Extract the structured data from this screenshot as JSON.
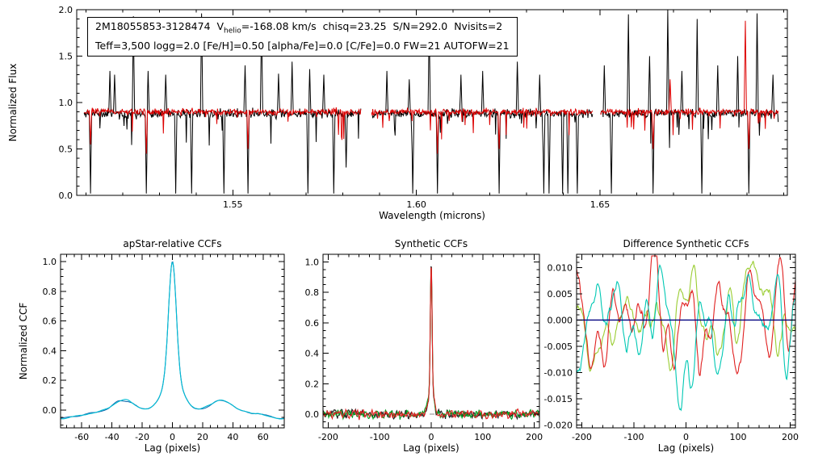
{
  "page": {
    "background": "#ffffff"
  },
  "annotation": {
    "line1_pre": "2M18055853-3128474  V",
    "line1_sub": "helio",
    "line1_post": "=-168.08 km/s  chisq=23.25  S/N=292.0  Nvisits=2",
    "line2": "Teff=3,500 logg=2.0 [Fe/H]=0.50 [alpha/Fe]=0.0 [C/Fe]=0.0 FW=21 AUTOFW=21"
  },
  "chart_data": [
    {
      "id": "spectrum",
      "type": "line",
      "title": "",
      "xlabel": "Wavelength (microns)",
      "ylabel": "Normalized Flux",
      "xlim": [
        1.5075,
        1.701
      ],
      "ylim": [
        0.0,
        2.0
      ],
      "xticks": [
        1.55,
        1.6,
        1.65
      ],
      "xtick_labels": [
        "1.55",
        "1.60",
        "1.65"
      ],
      "xminor": 0.01,
      "yticks": [
        0.0,
        0.5,
        1.0,
        1.5,
        2.0
      ],
      "ytick_labels": [
        "0.0",
        "0.5",
        "1.0",
        "1.5",
        "2.0"
      ],
      "yminor": 0.1,
      "sample_step": 0.00016,
      "segments": [
        [
          1.5095,
          1.5849
        ],
        [
          1.5878,
          1.648
        ],
        [
          1.6502,
          1.6985
        ]
      ],
      "series": [
        {
          "name": "observed-visit-spectrum",
          "color": "#000000",
          "generator": {
            "seed": 11,
            "baseline": 0.88,
            "noise": 0.08,
            "dip_prob": 0.055,
            "dip_depth": 0.38,
            "clip": null,
            "spikes_up": [
              [
                1.5165,
                1.34
              ],
              [
                1.5178,
                1.3
              ],
              [
                1.523,
                1.93
              ],
              [
                1.527,
                1.34
              ],
              [
                1.5318,
                1.3
              ],
              [
                1.5415,
                1.96
              ],
              [
                1.5533,
                1.4
              ],
              [
                1.5578,
                1.92
              ],
              [
                1.5625,
                1.31
              ],
              [
                1.5662,
                1.44
              ],
              [
                1.571,
                1.36
              ],
              [
                1.5748,
                1.3
              ],
              [
                1.592,
                1.34
              ],
              [
                1.598,
                1.25
              ],
              [
                1.6035,
                1.9
              ],
              [
                1.6122,
                1.3
              ],
              [
                1.618,
                1.34
              ],
              [
                1.6275,
                1.44
              ],
              [
                1.6336,
                1.3
              ],
              [
                1.6512,
                1.4
              ],
              [
                1.6577,
                1.95
              ],
              [
                1.6635,
                1.5
              ],
              [
                1.6685,
                2.0
              ],
              [
                1.6722,
                1.34
              ],
              [
                1.6765,
                1.9
              ],
              [
                1.682,
                1.4
              ],
              [
                1.6875,
                1.5
              ],
              [
                1.6927,
                1.96
              ],
              [
                1.697,
                1.3
              ]
            ],
            "spikes_down": [
              [
                1.5113,
                0.02
              ],
              [
                1.5265,
                0.02
              ],
              [
                1.5345,
                0.02
              ],
              [
                1.5388,
                0.02
              ],
              [
                1.5476,
                0.02
              ],
              [
                1.5541,
                0.02
              ],
              [
                1.5705,
                0.02
              ],
              [
                1.5775,
                0.02
              ],
              [
                1.5808,
                0.3
              ],
              [
                1.599,
                0.02
              ],
              [
                1.6057,
                0.02
              ],
              [
                1.6225,
                0.02
              ],
              [
                1.6347,
                0.02
              ],
              [
                1.6362,
                0.02
              ],
              [
                1.6398,
                0.02
              ],
              [
                1.6412,
                0.02
              ],
              [
                1.6438,
                0.02
              ],
              [
                1.653,
                0.02
              ],
              [
                1.6645,
                0.02
              ],
              [
                1.6777,
                0.02
              ],
              [
                1.6905,
                0.02
              ]
            ]
          }
        },
        {
          "name": "best-fit-synthetic-spectrum",
          "color": "#dd0000",
          "generator": {
            "seed": 7,
            "baseline": 0.9,
            "noise": 0.062,
            "dip_prob": 0.05,
            "dip_depth": 0.3,
            "clip": [
              0.44,
              1.1
            ],
            "spikes_up": [
              [
                1.669,
                1.25
              ],
              [
                1.6895,
                1.88
              ]
            ],
            "spikes_down": [
              [
                1.5113,
                0.55
              ],
              [
                1.5265,
                0.45
              ],
              [
                1.5541,
                0.5
              ],
              [
                1.6057,
                0.45
              ],
              [
                1.6225,
                0.5
              ],
              [
                1.6645,
                0.5
              ],
              [
                1.6905,
                0.5
              ]
            ]
          }
        }
      ]
    },
    {
      "id": "apstar_ccf",
      "type": "line",
      "title": "apStar-relative CCFs",
      "xlabel": "Lag (pixels)",
      "ylabel": "Normalized CCF",
      "xlim": [
        -74,
        74
      ],
      "ylim": [
        -0.12,
        1.05
      ],
      "xticks": [
        -60,
        -40,
        -20,
        0,
        20,
        40,
        60
      ],
      "xtick_labels": [
        "-60",
        "-40",
        "-20",
        "0",
        "20",
        "40",
        "60"
      ],
      "xminor": 5,
      "yticks": [
        0.0,
        0.2,
        0.4,
        0.6,
        0.8,
        1.0
      ],
      "ytick_labels": [
        "0.0",
        "0.2",
        "0.4",
        "0.6",
        "0.8",
        "1.0"
      ],
      "yminor": 0.05,
      "npts": 300,
      "model": {
        "peaks": [
          {
            "a": 0.78,
            "w": 3.6
          },
          {
            "a": 0.22,
            "w": 9
          }
        ],
        "sidelobes": [
          {
            "a": 0.065,
            "c": 32,
            "w": 9
          }
        ],
        "edge": {
          "a": -0.055,
          "start": 40,
          "ramp": 32
        }
      },
      "series": [
        {
          "name": "ccf-visit-2",
          "color": "#1a6fb0",
          "generator": {
            "seed": 5,
            "rms": 0.003,
            "win": 4,
            "passes": 2
          }
        },
        {
          "name": "ccf-visit-1",
          "color": "#00bcd4",
          "generator": {
            "seed": 3,
            "rms": 0.003,
            "win": 4,
            "passes": 2
          }
        }
      ]
    },
    {
      "id": "synthetic_ccf",
      "type": "line",
      "title": "Synthetic CCFs",
      "xlabel": "Lag (pixels)",
      "ylabel": "",
      "xlim": [
        -210,
        210
      ],
      "ylim": [
        -0.09,
        1.05
      ],
      "xticks": [
        -200,
        -100,
        0,
        100,
        200
      ],
      "xtick_labels": [
        "-200",
        "-100",
        "0",
        "100",
        "200"
      ],
      "xminor": 20,
      "yticks": [
        0.0,
        0.2,
        0.4,
        0.6,
        0.8,
        1.0
      ],
      "ytick_labels": [
        "0.0",
        "0.2",
        "0.4",
        "0.6",
        "0.8",
        "1.0"
      ],
      "yminor": 0.05,
      "npts": 420,
      "clip": [
        -0.07,
        1.01
      ],
      "model": {
        "peaks": [
          {
            "a": 0.82,
            "w": 2.3
          },
          {
            "a": 0.18,
            "w": 7
          }
        ]
      },
      "zero_line": {
        "y": 0,
        "color": "#888888",
        "dash": "6 5",
        "width": 1,
        "on_top": false
      },
      "series": [
        {
          "name": "synth-ccf-combined",
          "color": "#202020",
          "generator": {
            "seed": 31,
            "rms": 0.013,
            "win": 1,
            "passes": 1
          }
        },
        {
          "name": "synth-ccf-visit-1",
          "color": "#00a020",
          "generator": {
            "seed": 32,
            "rms": 0.013,
            "win": 1,
            "passes": 1
          }
        },
        {
          "name": "synth-ccf-visit-2",
          "color": "#e02020",
          "generator": {
            "seed": 33,
            "rms": 0.013,
            "win": 1,
            "passes": 1
          }
        }
      ]
    },
    {
      "id": "diff_ccf",
      "type": "line",
      "title": "Difference Synthetic CCFs",
      "xlabel": "Lag (pixels)",
      "ylabel": "",
      "xlim": [
        -210,
        210
      ],
      "ylim": [
        -0.0205,
        0.0125
      ],
      "xticks": [
        -200,
        -100,
        0,
        100,
        200
      ],
      "xtick_labels": [
        "-200",
        "-100",
        "0",
        "100",
        "200"
      ],
      "xminor": 20,
      "yticks": [
        0.01,
        0.005,
        0.0,
        -0.005,
        -0.01,
        -0.015,
        -0.02
      ],
      "ytick_labels": [
        "0.010",
        "0.005",
        "0.000",
        "-0.005",
        "-0.010",
        "-0.015",
        "-0.020"
      ],
      "yminor": 0.001,
      "npts": 380,
      "clip": [
        -0.0198,
        0.0122
      ],
      "zero_line": {
        "y": 0,
        "color": "#000080",
        "width": 1.3,
        "on_top": true
      },
      "series": [
        {
          "name": "diff-ccf-visit-1",
          "color": "#9acd32",
          "generator": {
            "seed": 42,
            "rms": 0.005,
            "win": 5,
            "passes": 2,
            "features": [
              {
                "x": -58,
                "a": 0.007,
                "w": 9
              },
              {
                "x": -130,
                "a": -0.004,
                "w": 16
              },
              {
                "x": 80,
                "a": 0.005,
                "w": 14
              }
            ]
          }
        },
        {
          "name": "diff-ccf-visit-2",
          "color": "#e02020",
          "generator": {
            "seed": 41,
            "rms": 0.005,
            "win": 5,
            "passes": 2,
            "features": [
              {
                "x": -62,
                "a": 0.009,
                "w": 9
              },
              {
                "x": 25,
                "a": -0.006,
                "w": 14
              },
              {
                "x": 120,
                "a": 0.004,
                "w": 18
              }
            ]
          }
        },
        {
          "name": "diff-ccf-combined",
          "color": "#00c8b4",
          "generator": {
            "seed": 43,
            "rms": 0.005,
            "win": 5,
            "passes": 2,
            "features": [
              {
                "x": -12,
                "a": -0.013,
                "w": 15
              },
              {
                "x": -85,
                "a": 0.005,
                "w": 12
              },
              {
                "x": 60,
                "a": -0.004,
                "w": 16
              }
            ]
          }
        }
      ]
    }
  ]
}
